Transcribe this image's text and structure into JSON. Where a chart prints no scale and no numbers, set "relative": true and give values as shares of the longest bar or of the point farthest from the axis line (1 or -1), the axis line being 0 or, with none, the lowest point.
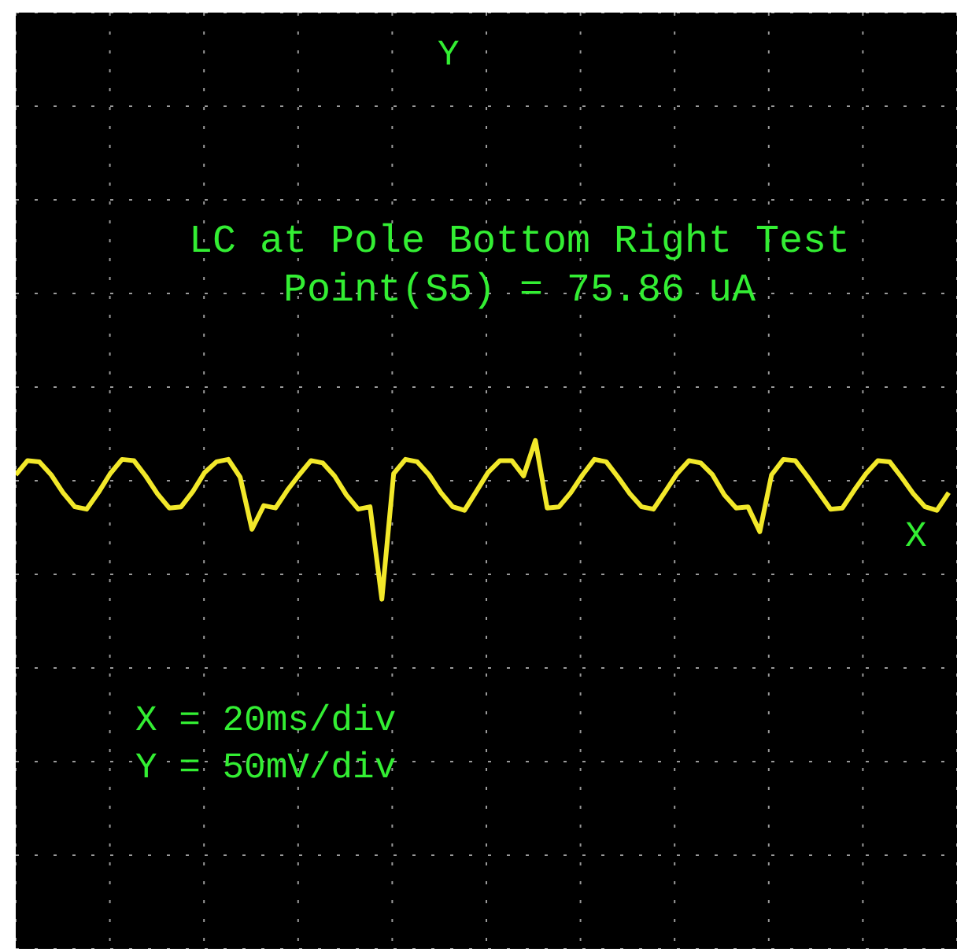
{
  "chart_data": {
    "type": "line",
    "title": "LC at Pole Bottom Right Test Point(S5) = 75.86 uA",
    "annotations": [
      "Y",
      "X",
      "X = 20ms/div",
      "Y = 50mV/div"
    ],
    "relative": true,
    "grid": true,
    "categories": [
      null,
      null,
      null,
      null,
      null,
      null,
      null,
      null,
      null,
      null,
      null,
      null,
      null,
      null,
      null,
      null,
      null,
      null,
      null,
      null,
      null,
      null,
      null,
      null,
      null,
      null,
      null,
      null,
      null,
      null,
      null,
      null,
      null,
      null,
      null,
      null,
      null,
      null,
      null,
      null,
      null,
      null,
      null,
      null,
      null,
      null,
      null,
      null,
      null,
      null,
      null,
      null,
      null,
      null,
      null,
      null,
      null,
      null,
      null,
      null,
      null,
      null,
      null,
      null,
      null,
      null,
      null,
      null,
      null,
      null,
      null,
      null,
      null,
      null,
      null,
      null,
      null,
      null,
      null,
      null
    ],
    "series": [
      {
        "color": "#f2e82a",
        "values": [
          0.05,
          0.17,
          0.16,
          0.05,
          -0.1,
          -0.22,
          -0.24,
          -0.1,
          0.06,
          0.18,
          0.17,
          0.04,
          -0.11,
          -0.23,
          -0.22,
          -0.09,
          0.07,
          0.16,
          0.18,
          0.03,
          -0.41,
          -0.21,
          -0.23,
          -0.08,
          0.05,
          0.17,
          0.15,
          0.04,
          -0.12,
          -0.24,
          -0.22,
          -1,
          0.06,
          0.18,
          0.16,
          0.05,
          -0.1,
          -0.22,
          -0.25,
          -0.09,
          0.07,
          0.17,
          0.17,
          0.04,
          0.34,
          -0.23,
          -0.22,
          -0.1,
          0.05,
          0.18,
          0.16,
          0.03,
          -0.11,
          -0.22,
          -0.24,
          -0.09,
          0.06,
          0.17,
          0.15,
          0.05,
          -0.12,
          -0.23,
          -0.22,
          -0.43,
          0.05,
          0.18,
          0.17,
          0.04,
          -0.1,
          -0.24,
          -0.23,
          -0.08,
          0.06,
          0.17,
          0.16,
          0.03,
          -0.11,
          -0.22,
          -0.25,
          -0.1
        ]
      }
    ]
  }
}
